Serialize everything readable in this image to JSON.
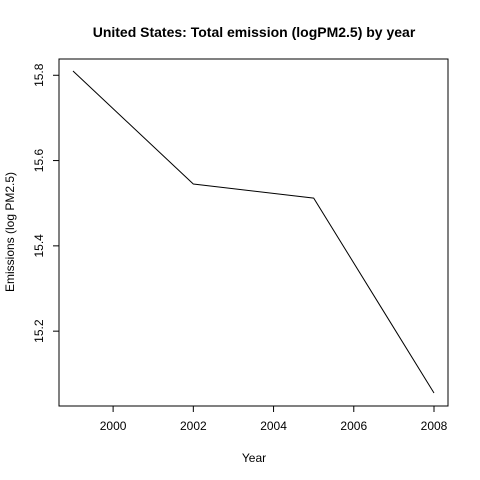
{
  "chart_data": {
    "type": "line",
    "title": "United States: Total emission (logPM2.5) by year",
    "xlabel": "Year",
    "ylabel": "Emissions (log PM2.5)",
    "x": [
      1999,
      2002,
      2005,
      2008
    ],
    "series": [
      {
        "values": [
          15.81,
          15.545,
          15.512,
          15.055
        ]
      }
    ],
    "xlim": [
      1999,
      2008
    ],
    "ylim": [
      15.055,
      15.81
    ],
    "xticks": [
      "2000",
      "2002",
      "2004",
      "2006",
      "2008"
    ],
    "yticks": [
      "15.2",
      "15.4",
      "15.6",
      "15.8"
    ],
    "grid": false,
    "legend": "none",
    "line_color": "#000000"
  }
}
